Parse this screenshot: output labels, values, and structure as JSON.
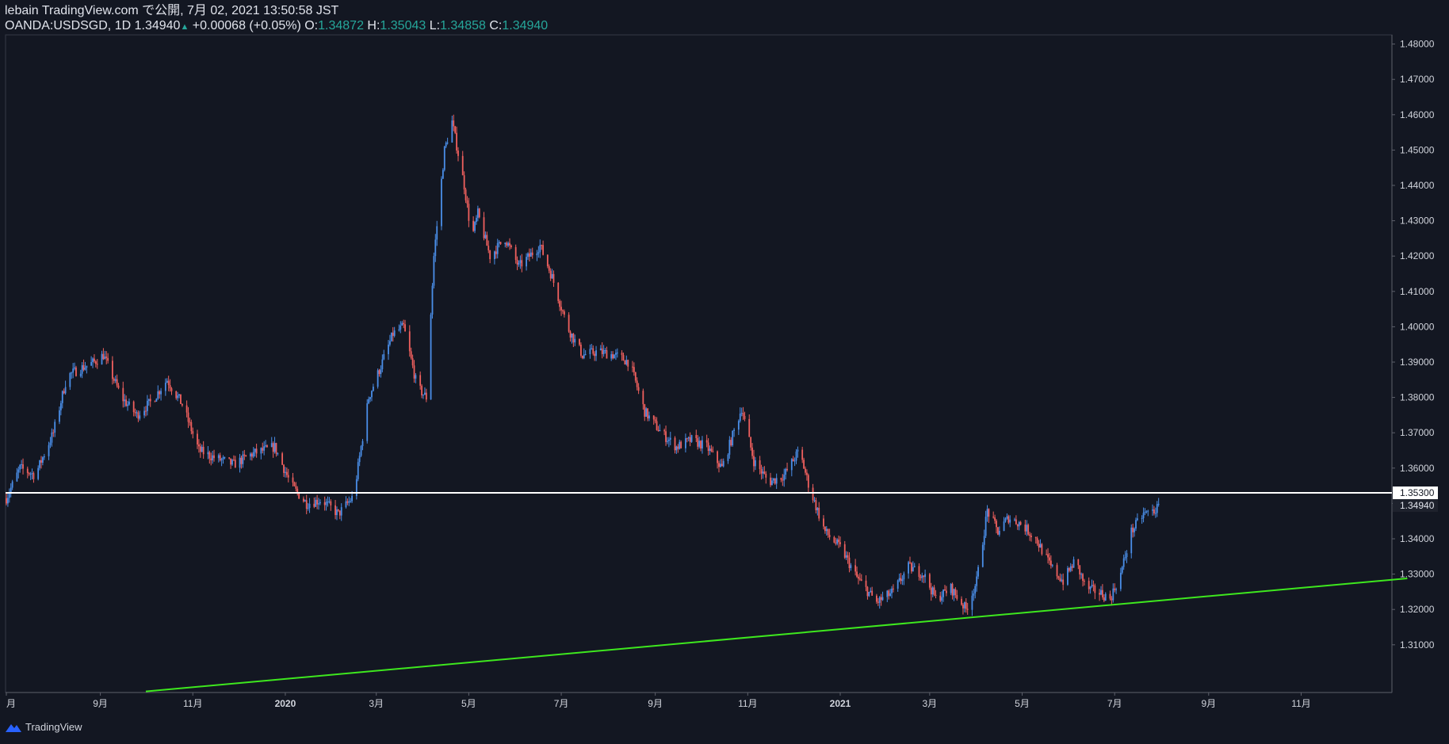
{
  "header": {
    "line1": "lebain TradingView.com で公開, 7月 02, 2021 13:50:58 JST",
    "symbol": "OANDA:USDSGD, 1D",
    "last": "1.34940",
    "change": "+0.00068 (+0.05%)",
    "o_label": "O:",
    "o": "1.34872",
    "h_label": "H:",
    "h": "1.35043",
    "l_label": "L:",
    "l": "1.34858",
    "c_label": "C:",
    "c": "1.34940"
  },
  "footer": {
    "brand": "TradingView"
  },
  "colors": {
    "bg": "#131722",
    "up": "#4a8ee8",
    "down": "#f0605e",
    "support": "#3ee81e",
    "resistance": "#ffffff",
    "grid": "#2a2e39",
    "text": "#d1d4dc"
  },
  "chart_data": {
    "type": "candlestick",
    "symbol": "OANDA:USDSGD",
    "interval": "1D",
    "ylim": [
      1.2965,
      1.4826
    ],
    "y_ticks": [
      "1.48000",
      "1.47000",
      "1.46000",
      "1.45000",
      "1.44000",
      "1.43000",
      "1.42000",
      "1.41000",
      "1.40000",
      "1.39000",
      "1.38000",
      "1.37000",
      "1.36000",
      "1.35000",
      "1.34000",
      "1.33000",
      "1.32000",
      "1.31000"
    ],
    "x_ticks": [
      "月",
      "9月",
      "11月",
      "2020",
      "3月",
      "5月",
      "7月",
      "9月",
      "11月",
      "2021",
      "3月",
      "5月",
      "7月",
      "9月",
      "11月"
    ],
    "horizontal_line": {
      "value": 1.353,
      "label": "1.35300"
    },
    "last_price_label": "1.34940",
    "trendline": {
      "start": [
        "2019-10-01",
        1.2968
      ],
      "end": [
        "2022-01-10",
        1.3288
      ]
    },
    "close_path": [
      [
        "2019-07-01",
        1.3515
      ],
      [
        "2019-07-10",
        1.36
      ],
      [
        "2019-07-20",
        1.358
      ],
      [
        "2019-08-01",
        1.37
      ],
      [
        "2019-08-10",
        1.386
      ],
      [
        "2019-08-18",
        1.388
      ],
      [
        "2019-08-28",
        1.39
      ],
      [
        "2019-09-03",
        1.392
      ],
      [
        "2019-09-15",
        1.38
      ],
      [
        "2019-09-25",
        1.375
      ],
      [
        "2019-10-05",
        1.379
      ],
      [
        "2019-10-15",
        1.385
      ],
      [
        "2019-10-25",
        1.378
      ],
      [
        "2019-11-05",
        1.365
      ],
      [
        "2019-11-15",
        1.363
      ],
      [
        "2019-11-28",
        1.361
      ],
      [
        "2019-12-10",
        1.364
      ],
      [
        "2019-12-25",
        1.366
      ],
      [
        "2020-01-05",
        1.355
      ],
      [
        "2020-01-15",
        1.35
      ],
      [
        "2020-01-25",
        1.351
      ],
      [
        "2020-02-05",
        1.347
      ],
      [
        "2020-02-15",
        1.352
      ],
      [
        "2020-02-25",
        1.38
      ],
      [
        "2020-03-05",
        1.39
      ],
      [
        "2020-03-12",
        1.398
      ],
      [
        "2020-03-19",
        1.4
      ],
      [
        "2020-03-28",
        1.383
      ],
      [
        "2020-04-03",
        1.38
      ],
      [
        "2020-04-08",
        1.42
      ],
      [
        "2020-04-15",
        1.45
      ],
      [
        "2020-04-20",
        1.458
      ],
      [
        "2020-04-28",
        1.44
      ],
      [
        "2020-05-03",
        1.425
      ],
      [
        "2020-05-07",
        1.432
      ],
      [
        "2020-05-15",
        1.42
      ],
      [
        "2020-05-25",
        1.425
      ],
      [
        "2020-06-03",
        1.417
      ],
      [
        "2020-06-10",
        1.42
      ],
      [
        "2020-06-17",
        1.423
      ],
      [
        "2020-06-25",
        1.414
      ],
      [
        "2020-07-05",
        1.4
      ],
      [
        "2020-07-15",
        1.392
      ],
      [
        "2020-07-25",
        1.393
      ],
      [
        "2020-08-05",
        1.392
      ],
      [
        "2020-08-15",
        1.39
      ],
      [
        "2020-08-25",
        1.376
      ],
      [
        "2020-09-05",
        1.37
      ],
      [
        "2020-09-15",
        1.366
      ],
      [
        "2020-09-25",
        1.368
      ],
      [
        "2020-10-05",
        1.366
      ],
      [
        "2020-10-15",
        1.36
      ],
      [
        "2020-10-28",
        1.377
      ],
      [
        "2020-11-05",
        1.362
      ],
      [
        "2020-11-15",
        1.356
      ],
      [
        "2020-11-25",
        1.358
      ],
      [
        "2020-12-05",
        1.365
      ],
      [
        "2020-12-12",
        1.354
      ],
      [
        "2020-12-22",
        1.342
      ],
      [
        "2021-01-02",
        1.337
      ],
      [
        "2021-01-12",
        1.329
      ],
      [
        "2021-01-25",
        1.322
      ],
      [
        "2021-02-05",
        1.325
      ],
      [
        "2021-02-15",
        1.332
      ],
      [
        "2021-02-25",
        1.33
      ],
      [
        "2021-03-05",
        1.323
      ],
      [
        "2021-03-15",
        1.326
      ],
      [
        "2021-03-25",
        1.32
      ],
      [
        "2021-04-01",
        1.328
      ],
      [
        "2021-04-08",
        1.348
      ],
      [
        "2021-04-15",
        1.342
      ],
      [
        "2021-04-22",
        1.346
      ],
      [
        "2021-05-01",
        1.344
      ],
      [
        "2021-05-10",
        1.34
      ],
      [
        "2021-05-20",
        1.332
      ],
      [
        "2021-05-28",
        1.328
      ],
      [
        "2021-06-05",
        1.334
      ],
      [
        "2021-06-12",
        1.326
      ],
      [
        "2021-06-20",
        1.325
      ],
      [
        "2021-06-28",
        1.323
      ],
      [
        "2021-07-05",
        1.33
      ],
      [
        "2021-07-12",
        1.342
      ],
      [
        "2021-07-20",
        1.347
      ],
      [
        "2021-07-27",
        1.348
      ],
      [
        "2021-08-01",
        1.3494
      ]
    ]
  }
}
